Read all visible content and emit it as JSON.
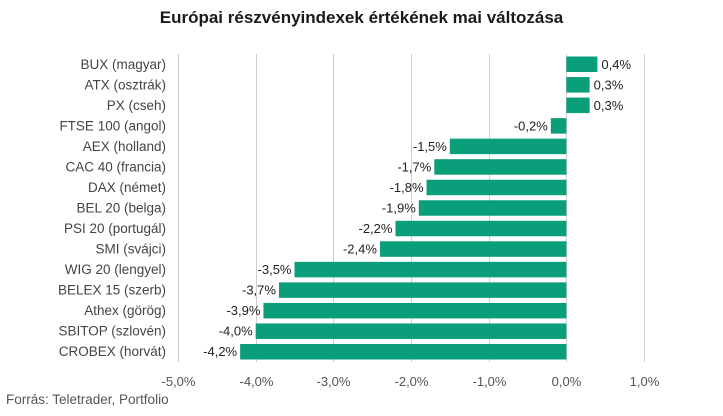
{
  "chart_data": {
    "type": "bar",
    "orientation": "horizontal",
    "title": "Európai részvényindexek értékének mai változása",
    "source": "Forrás: Teletrader, Portfolio",
    "categories": [
      "BUX (magyar)",
      "ATX (osztrák)",
      "PX (cseh)",
      "FTSE 100 (angol)",
      "AEX (holland)",
      "CAC 40 (francia)",
      "DAX (német)",
      "BEL 20 (belga)",
      "PSI 20 (portugál)",
      "SMI (svájci)",
      "WIG 20 (lengyel)",
      "BELEX 15 (szerb)",
      "Athex (görög)",
      "SBITOP (szlovén)",
      "CROBEX (horvát)"
    ],
    "values": [
      0.4,
      0.3,
      0.3,
      -0.2,
      -1.5,
      -1.7,
      -1.8,
      -1.9,
      -2.2,
      -2.4,
      -3.5,
      -3.7,
      -3.9,
      -4.0,
      -4.2
    ],
    "value_labels": [
      "0,4%",
      "0,3%",
      "0,3%",
      "-0,2%",
      "-1,5%",
      "-1,7%",
      "-1,8%",
      "-1,9%",
      "-2,2%",
      "-2,4%",
      "-3,5%",
      "-3,7%",
      "-3,9%",
      "-4,0%",
      "-4,2%"
    ],
    "xlim": [
      -5,
      1
    ],
    "ticks": [
      -5,
      -4,
      -3,
      -2,
      -1,
      0,
      1
    ],
    "tick_labels": [
      "-5,0%",
      "-4,0%",
      "-3,0%",
      "-2,0%",
      "-1,0%",
      "0,0%",
      "1,0%"
    ],
    "grid": true,
    "bar_color": "#0b9e7a"
  }
}
